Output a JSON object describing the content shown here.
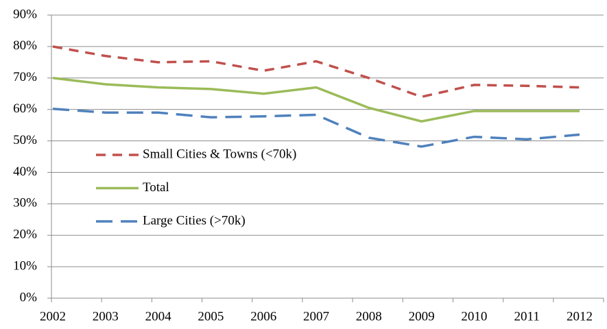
{
  "chart_data": {
    "type": "line",
    "categories": [
      "2002",
      "2003",
      "2004",
      "2005",
      "2006",
      "2007",
      "2008",
      "2009",
      "2010",
      "2011",
      "2012"
    ],
    "series": [
      {
        "name": "Small Cities & Towns (<70k)",
        "color": "#c0504d",
        "dash": "dashed",
        "values": [
          80,
          77,
          75,
          75.3,
          72.3,
          75.3,
          70,
          64,
          67.8,
          67.5,
          67
        ]
      },
      {
        "name": "Total",
        "color": "#9bbb59",
        "dash": "solid",
        "values": [
          70,
          68,
          67,
          66.5,
          65,
          67,
          60.5,
          56.2,
          59.5,
          59.5,
          59.5
        ]
      },
      {
        "name": "Large Cities (>70k)",
        "color": "#4f81bd",
        "dash": "long-dash",
        "values": [
          60.2,
          59,
          59,
          57.5,
          57.8,
          58.3,
          51,
          48.2,
          51.3,
          50.5,
          52
        ]
      }
    ],
    "ylim": [
      0,
      90
    ],
    "yticks": [
      {
        "value": 0,
        "label": "0%"
      },
      {
        "value": 10,
        "label": "10%"
      },
      {
        "value": 20,
        "label": "20%"
      },
      {
        "value": 30,
        "label": "30%"
      },
      {
        "value": 40,
        "label": "40%"
      },
      {
        "value": 50,
        "label": "50%"
      },
      {
        "value": 60,
        "label": "60%"
      },
      {
        "value": 70,
        "label": "70%"
      },
      {
        "value": 80,
        "label": "80%"
      },
      {
        "value": 90,
        "label": "90%"
      }
    ],
    "grid": true,
    "legend": "inside-left"
  }
}
